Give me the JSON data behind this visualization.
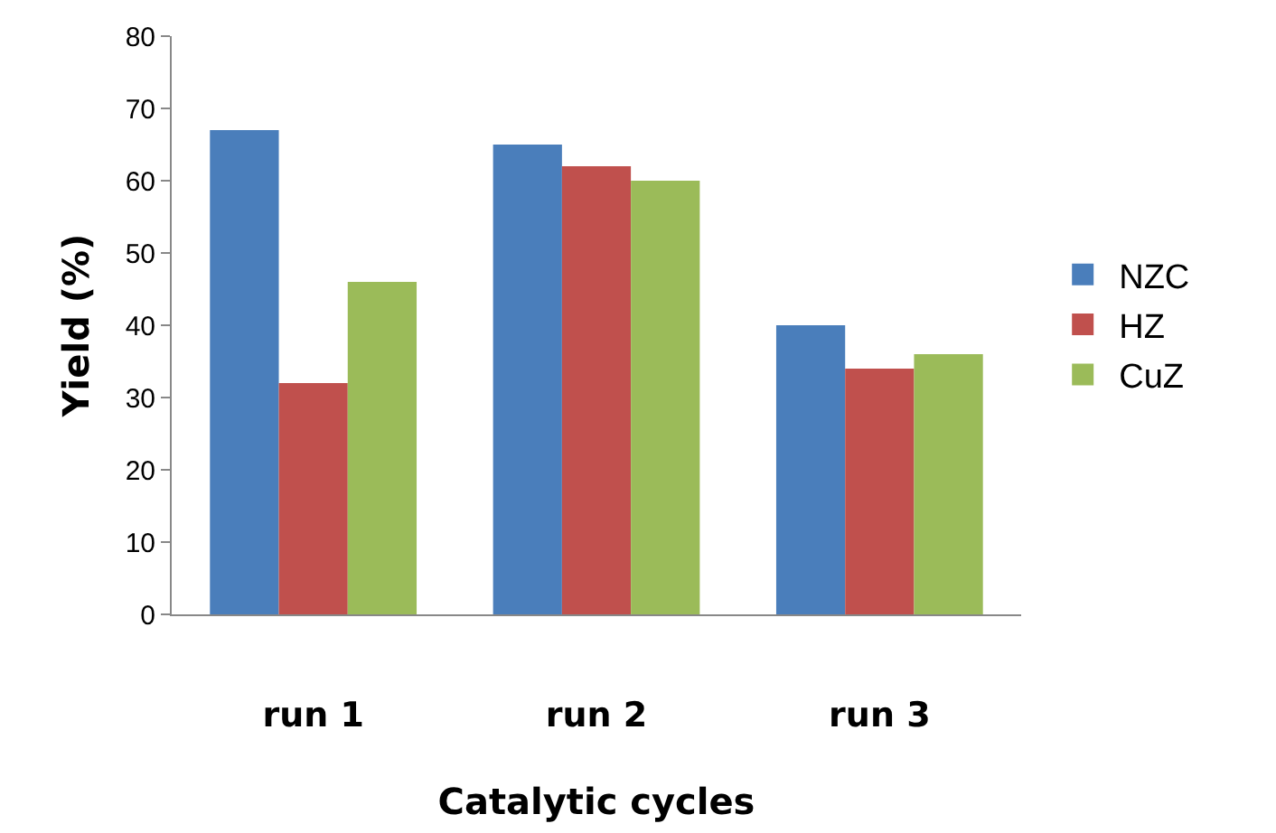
{
  "chart_data": {
    "type": "bar",
    "xlabel": "Catalytic cycles",
    "ylabel": "Yield (%)",
    "categories": [
      "run 1",
      "run 2",
      "run 3"
    ],
    "series": [
      {
        "name": "NZC",
        "color": "#4a7ebb",
        "values": [
          67,
          65,
          40
        ]
      },
      {
        "name": "HZ",
        "color": "#c0504d",
        "values": [
          32,
          62,
          34
        ]
      },
      {
        "name": "CuZ",
        "color": "#9bbb59",
        "values": [
          46,
          60,
          36
        ]
      }
    ],
    "ylim": [
      0,
      80
    ],
    "yticks": [
      0,
      10,
      20,
      30,
      40,
      50,
      60,
      70,
      80
    ],
    "grid": false,
    "legend": "right"
  }
}
